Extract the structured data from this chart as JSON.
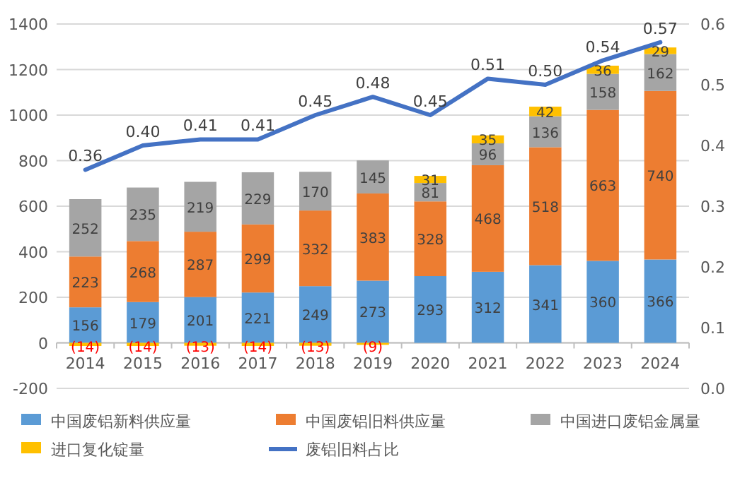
{
  "chart_data": {
    "type": "bar",
    "stacked": true,
    "categories": [
      "2014",
      "2015",
      "2016",
      "2017",
      "2018",
      "2019",
      "2020",
      "2021",
      "2022",
      "2023",
      "2024"
    ],
    "series": [
      {
        "name": "中国废铝新料供应量",
        "color": "#5b9bd5",
        "values": [
          156,
          179,
          201,
          221,
          249,
          273,
          293,
          312,
          341,
          360,
          366
        ]
      },
      {
        "name": "中国废铝旧料供应量",
        "color": "#ed7d31",
        "values": [
          223,
          268,
          287,
          299,
          332,
          383,
          328,
          468,
          518,
          663,
          740
        ]
      },
      {
        "name": "中国进口废铝金属量",
        "color": "#a5a5a5",
        "values": [
          252,
          235,
          219,
          229,
          170,
          145,
          81,
          96,
          136,
          158,
          162
        ]
      },
      {
        "name": "进口复化锭量",
        "color": "#ffc000",
        "values": [
          -14,
          -14,
          -13,
          -14,
          -13,
          -9,
          31,
          35,
          42,
          36,
          29
        ],
        "value_labels": [
          "(14)",
          "(14)",
          "(13)",
          "(14)",
          "(13)",
          "(9)",
          "31",
          "35",
          "42",
          "36",
          "29"
        ]
      },
      {
        "name": "废铝旧料占比",
        "type": "line",
        "axis": "y2",
        "color": "#4472c4",
        "values": [
          0.36,
          0.4,
          0.41,
          0.41,
          0.45,
          0.48,
          0.45,
          0.51,
          0.5,
          0.54,
          0.57
        ],
        "value_labels": [
          "0.36",
          "0.40",
          "0.41",
          "0.41",
          "0.45",
          "0.48",
          "0.45",
          "0.51",
          "0.50",
          "0.54",
          "0.57"
        ]
      }
    ],
    "ylim": [
      -200,
      1400
    ],
    "yticks": [
      -200,
      0,
      200,
      400,
      600,
      800,
      1000,
      1200,
      1400
    ],
    "y2lim": [
      0.0,
      0.6
    ],
    "y2ticks": [
      {
        "value": 0,
        "label": "0.0"
      },
      0.1,
      0.2,
      0.3,
      0.4,
      0.5,
      0.6
    ],
    "grid": "y",
    "legend": "bottom",
    "data_labels": true
  }
}
